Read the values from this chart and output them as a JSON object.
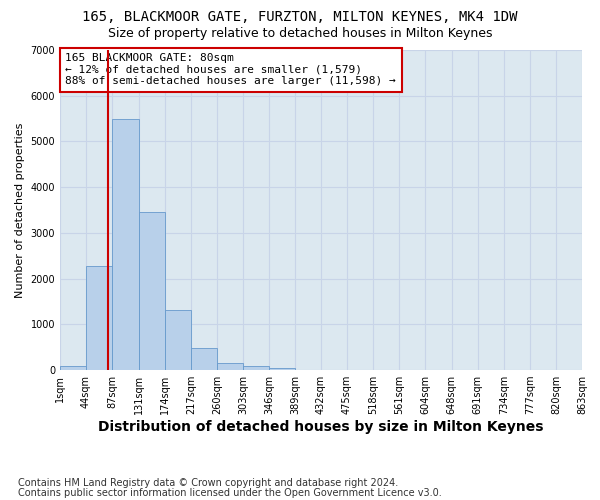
{
  "title": "165, BLACKMOOR GATE, FURZTON, MILTON KEYNES, MK4 1DW",
  "subtitle": "Size of property relative to detached houses in Milton Keynes",
  "xlabel": "Distribution of detached houses by size in Milton Keynes",
  "ylabel": "Number of detached properties",
  "bin_edges": [
    1,
    44,
    87,
    131,
    174,
    217,
    260,
    303,
    346,
    389,
    432,
    475,
    518,
    561,
    604,
    648,
    691,
    734,
    777,
    820,
    863
  ],
  "bar_heights": [
    85,
    2270,
    5480,
    3450,
    1320,
    480,
    155,
    85,
    45,
    10,
    5,
    2,
    1,
    0,
    0,
    0,
    0,
    0,
    0,
    0
  ],
  "bar_color": "#b8d0ea",
  "bar_edgecolor": "#6699cc",
  "red_line_x": 80,
  "annotation_line1": "165 BLACKMOOR GATE: 80sqm",
  "annotation_line2": "← 12% of detached houses are smaller (1,579)",
  "annotation_line3": "88% of semi-detached houses are larger (11,598) →",
  "annotation_box_edgecolor": "#cc0000",
  "ylim": [
    0,
    7000
  ],
  "yticks": [
    0,
    1000,
    2000,
    3000,
    4000,
    5000,
    6000,
    7000
  ],
  "xtick_labels": [
    "1sqm",
    "44sqm",
    "87sqm",
    "131sqm",
    "174sqm",
    "217sqm",
    "260sqm",
    "303sqm",
    "346sqm",
    "389sqm",
    "432sqm",
    "475sqm",
    "518sqm",
    "561sqm",
    "604sqm",
    "648sqm",
    "691sqm",
    "734sqm",
    "777sqm",
    "820sqm",
    "863sqm"
  ],
  "footer_line1": "Contains HM Land Registry data © Crown copyright and database right 2024.",
  "footer_line2": "Contains public sector information licensed under the Open Government Licence v3.0.",
  "grid_color": "#c8d4e8",
  "background_color": "#dce8f0",
  "title_fontsize": 10,
  "subtitle_fontsize": 9,
  "xlabel_fontsize": 10,
  "ylabel_fontsize": 8,
  "annotation_fontsize": 8,
  "footer_fontsize": 7,
  "tick_fontsize": 7
}
